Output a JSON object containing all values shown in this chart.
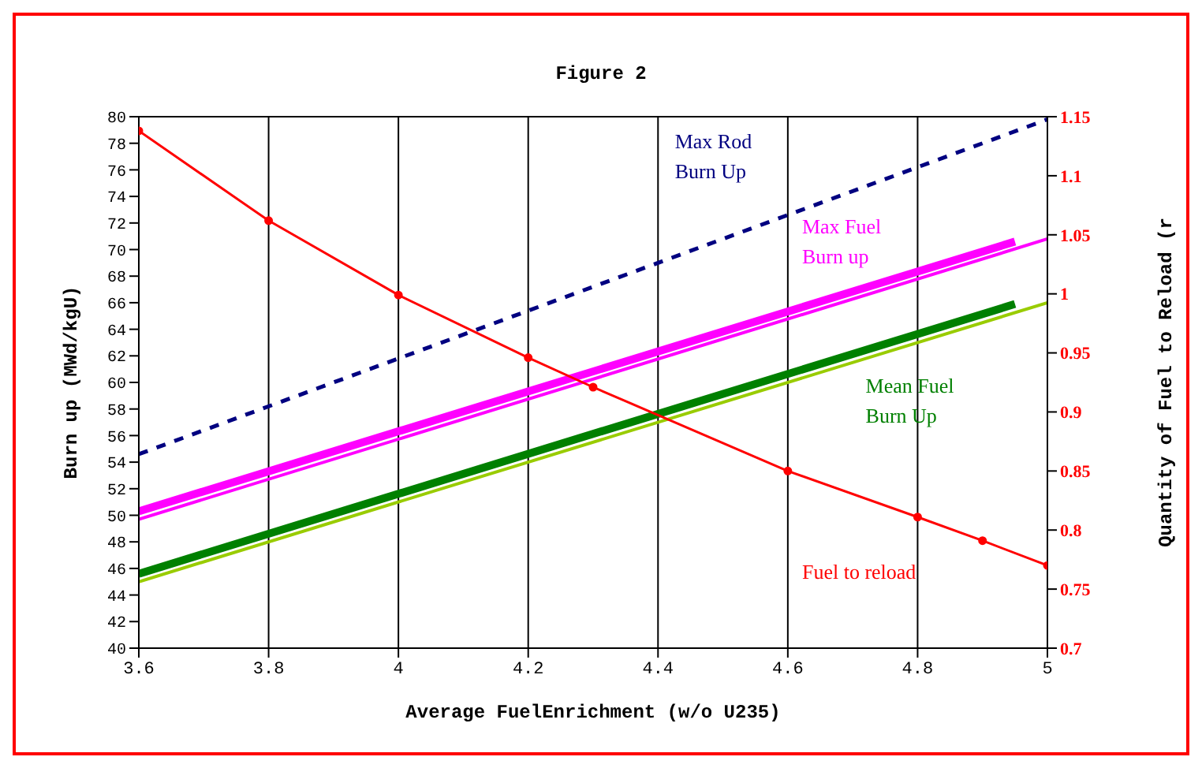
{
  "chart_data": {
    "type": "line",
    "title": "Figure 2",
    "xlabel": "Average FuelEnrichment (w/o U235)",
    "ylabel": "Burn up (MWd/kgU)",
    "y2label": "Quantity of Fuel to Reload (r",
    "xlim": [
      3.6,
      5
    ],
    "xticks": [
      3.6,
      3.8,
      4,
      4.2,
      4.4,
      4.6,
      4.8,
      5
    ],
    "ylim": [
      40,
      80
    ],
    "yticks": [
      40,
      42,
      44,
      46,
      48,
      50,
      52,
      54,
      56,
      58,
      60,
      62,
      64,
      66,
      68,
      70,
      72,
      74,
      76,
      78,
      80
    ],
    "y2lim": [
      0.7,
      1.15
    ],
    "y2ticks": [
      0.7,
      0.75,
      0.8,
      0.85,
      0.9,
      0.95,
      1,
      1.05,
      1.1,
      1.15
    ],
    "grid": true,
    "legend": false,
    "marker": "none",
    "series": [
      {
        "name": "Max Rod Burn Up",
        "color": "#000080",
        "line_style": "dashed",
        "x": [
          3.6,
          5
        ],
        "values": [
          54.6,
          79.8
        ]
      },
      {
        "name": "Max Fuel Burn up",
        "color": "#ff00ff",
        "x": [
          3.6,
          4.95
        ],
        "values": [
          50.3,
          70.6
        ]
      },
      {
        "color": "#ff00ff",
        "x": [
          3.6,
          5
        ],
        "values": [
          49.7,
          70.8
        ]
      },
      {
        "name": "Mean Fuel Burn Up",
        "color": "#008000",
        "x": [
          3.6,
          4.95
        ],
        "values": [
          45.6,
          65.9
        ]
      },
      {
        "color": "#99cc00",
        "x": [
          3.6,
          5
        ],
        "values": [
          45.0,
          66.0
        ]
      },
      {
        "name": "Fuel to reload",
        "color": "#ff0000",
        "axis": "y2",
        "marker": "circle",
        "x": [
          3.6,
          3.8,
          4,
          4.2,
          4.3,
          4.6,
          4.8,
          4.9,
          5
        ],
        "values": [
          1.138,
          1.062,
          0.999,
          0.946,
          0.921,
          0.85,
          0.811,
          0.791,
          0.77
        ]
      }
    ]
  }
}
